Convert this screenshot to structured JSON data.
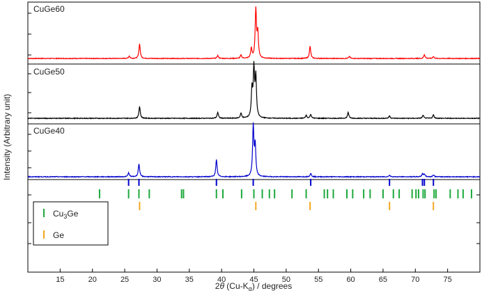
{
  "chart_data": {
    "type": "line",
    "xlabel_parts": {
      "a": "2",
      "theta": "θ",
      "b": " (Cu-K",
      "sub": "α",
      "c": ")  / degrees"
    },
    "ylabel": "Intensity (Arbitrary unit)",
    "xlim": [
      10,
      80
    ],
    "xticks": [
      15,
      20,
      25,
      30,
      35,
      40,
      45,
      50,
      55,
      60,
      65,
      70,
      75
    ],
    "xtick_labels": [
      "15",
      "20",
      "25",
      "30",
      "35",
      "40",
      "45",
      "50",
      "55",
      "60",
      "65",
      "70",
      "75"
    ],
    "grid": false,
    "series": [
      {
        "name": "CuGe60",
        "color": "#ff0000",
        "baseline": 0.05,
        "peaks": [
          [
            25.7,
            0.05
          ],
          [
            27.3,
            0.3
          ],
          [
            39.4,
            0.06
          ],
          [
            43.0,
            0.07
          ],
          [
            44.6,
            0.2
          ],
          [
            45.3,
            1.0
          ],
          [
            45.6,
            0.5
          ],
          [
            53.7,
            0.25
          ],
          [
            59.8,
            0.04
          ],
          [
            71.4,
            0.08
          ],
          [
            72.8,
            0.04
          ]
        ]
      },
      {
        "name": "CuGe50",
        "color": "#000000",
        "baseline": 0.05,
        "peaks": [
          [
            27.3,
            0.24
          ],
          [
            39.4,
            0.12
          ],
          [
            43.0,
            0.1
          ],
          [
            44.7,
            0.55
          ],
          [
            45.0,
            0.95
          ],
          [
            45.3,
            0.8
          ],
          [
            53.1,
            0.06
          ],
          [
            53.8,
            0.08
          ],
          [
            59.6,
            0.12
          ],
          [
            66.0,
            0.05
          ],
          [
            71.2,
            0.06
          ],
          [
            72.8,
            0.07
          ]
        ]
      },
      {
        "name": "CuGe40",
        "color": "#0000cc",
        "baseline": 0.04,
        "peaks": [
          [
            25.6,
            0.08
          ],
          [
            27.2,
            0.26
          ],
          [
            39.2,
            0.34
          ],
          [
            44.9,
            1.0
          ],
          [
            45.2,
            0.6
          ],
          [
            53.8,
            0.07
          ],
          [
            66.0,
            0.03
          ],
          [
            71.1,
            0.06
          ],
          [
            71.4,
            0.05
          ],
          [
            72.8,
            0.04
          ]
        ]
      }
    ],
    "reference_phases": [
      {
        "name": "Cu3Ge",
        "label_parts": {
          "a": "Cu",
          "sub": "3",
          "b": "Ge"
        },
        "color": "#1ea83c",
        "positions": [
          21.1,
          25.6,
          27.2,
          28.8,
          33.8,
          34.1,
          39.2,
          40.2,
          43.1,
          45.0,
          46.3,
          47.4,
          48.2,
          50.9,
          53.1,
          55.9,
          56.4,
          57.3,
          59.4,
          60.3,
          62.0,
          63.0,
          65.0,
          66.6,
          67.5,
          69.5,
          70.1,
          70.5,
          71.2,
          71.5,
          72.9,
          73.2,
          75.4,
          76.6,
          77.4,
          78.7
        ]
      },
      {
        "name": "Ge",
        "label_parts": {
          "a": "Ge",
          "sub": "",
          "b": ""
        },
        "color": "#f5a623",
        "positions": [
          27.3,
          45.3,
          53.7,
          66.0,
          72.8
        ]
      }
    ],
    "hkl_markers": {
      "color": "#0000cc",
      "positions": [
        25.6,
        27.2,
        39.2,
        44.9,
        53.8,
        66.0,
        71.1,
        71.4,
        72.8
      ]
    }
  }
}
